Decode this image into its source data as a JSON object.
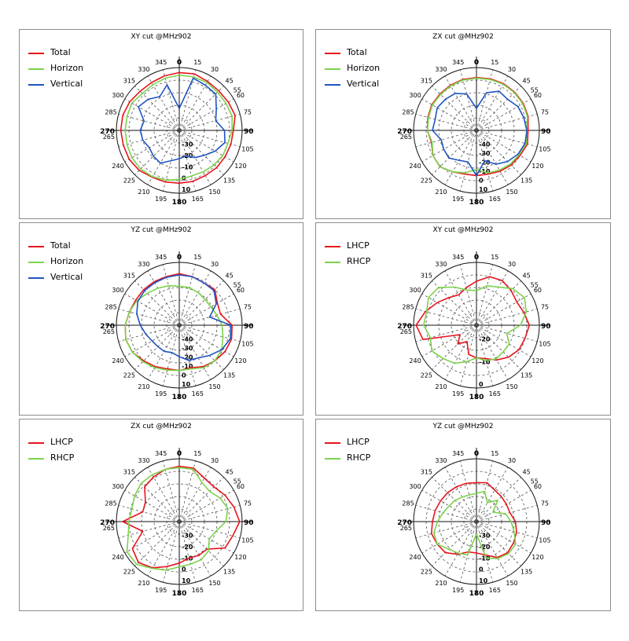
{
  "chart_data": [
    {
      "type": "polar-line",
      "title": "XY cut @MHz902",
      "angle_ticks": [
        "0",
        "15",
        "30",
        "45",
        "55",
        "60",
        "75",
        "90",
        "105",
        "120",
        "135",
        "150",
        "165",
        "180",
        "195",
        "210",
        "225",
        "240",
        "265",
        "270",
        "285",
        "300",
        "315",
        "330",
        "345"
      ],
      "radial_ticks": [
        "-30",
        "-20",
        "-10",
        "0",
        "10"
      ],
      "series": [
        {
          "name": "Total",
          "color": "#e8141e",
          "angles": [
            0,
            15,
            30,
            45,
            60,
            75,
            90,
            105,
            120,
            135,
            150,
            165,
            180,
            195,
            210,
            225,
            240,
            255,
            270,
            285,
            300,
            315,
            330,
            345
          ],
          "values": [
            0.92,
            0.93,
            0.9,
            0.89,
            0.9,
            0.92,
            0.86,
            0.85,
            0.84,
            0.84,
            0.83,
            0.84,
            0.84,
            0.85,
            0.86,
            0.9,
            0.92,
            0.92,
            0.93,
            0.93,
            0.91,
            0.88,
            0.88,
            0.9
          ]
        },
        {
          "name": "Horizon",
          "color": "#7bd34a",
          "angles": [
            0,
            15,
            30,
            45,
            60,
            75,
            90,
            105,
            120,
            135,
            150,
            165,
            180,
            195,
            210,
            225,
            240,
            255,
            270,
            285,
            300,
            315,
            330,
            345
          ],
          "values": [
            0.88,
            0.88,
            0.88,
            0.86,
            0.86,
            0.87,
            0.84,
            0.8,
            0.8,
            0.78,
            0.76,
            0.75,
            0.78,
            0.82,
            0.85,
            0.87,
            0.87,
            0.86,
            0.86,
            0.86,
            0.87,
            0.83,
            0.84,
            0.86
          ]
        },
        {
          "name": "Vertical",
          "color": "#1f54c2",
          "angles": [
            0,
            15,
            30,
            45,
            60,
            75,
            90,
            105,
            120,
            135,
            150,
            165,
            180,
            195,
            210,
            225,
            240,
            255,
            270,
            285,
            300,
            315,
            330,
            345
          ],
          "values": [
            0.35,
            0.86,
            0.83,
            0.82,
            0.68,
            0.6,
            0.72,
            0.75,
            0.66,
            0.56,
            0.5,
            0.42,
            0.45,
            0.5,
            0.6,
            0.58,
            0.55,
            0.6,
            0.62,
            0.58,
            0.75,
            0.7,
            0.62,
            0.75
          ]
        }
      ]
    },
    {
      "type": "polar-line",
      "title": "ZX cut @MHz902",
      "angle_ticks": [
        "0",
        "15",
        "30",
        "45",
        "55",
        "60",
        "75",
        "90",
        "105",
        "120",
        "135",
        "150",
        "165",
        "180",
        "195",
        "210",
        "225",
        "240",
        "265",
        "270",
        "285",
        "300",
        "315",
        "330",
        "345"
      ],
      "radial_ticks": [
        "-40",
        "-30",
        "-20",
        "-10",
        "0",
        "10"
      ],
      "series": [
        {
          "name": "Total",
          "color": "#e8141e",
          "angles": [
            0,
            15,
            30,
            45,
            60,
            75,
            90,
            105,
            120,
            135,
            150,
            165,
            180,
            195,
            210,
            225,
            240,
            255,
            270,
            285,
            300,
            315,
            330,
            345
          ],
          "values": [
            0.84,
            0.85,
            0.86,
            0.86,
            0.86,
            0.85,
            0.82,
            0.84,
            0.8,
            0.78,
            0.75,
            0.72,
            0.72,
            0.72,
            0.76,
            0.82,
            0.8,
            0.74,
            0.78,
            0.8,
            0.82,
            0.82,
            0.83,
            0.84
          ]
        },
        {
          "name": "Horizon",
          "color": "#7bd34a",
          "angles": [
            0,
            15,
            30,
            45,
            60,
            75,
            90,
            105,
            120,
            135,
            150,
            165,
            180,
            195,
            210,
            225,
            240,
            255,
            270,
            285,
            300,
            315,
            330,
            345
          ],
          "values": [
            0.83,
            0.84,
            0.85,
            0.85,
            0.85,
            0.84,
            0.8,
            0.82,
            0.78,
            0.76,
            0.73,
            0.7,
            0.62,
            0.7,
            0.76,
            0.82,
            0.8,
            0.73,
            0.78,
            0.79,
            0.81,
            0.81,
            0.82,
            0.83
          ]
        },
        {
          "name": "Vertical",
          "color": "#1f54c2",
          "angles": [
            0,
            15,
            30,
            45,
            60,
            75,
            90,
            105,
            120,
            135,
            150,
            165,
            180,
            195,
            210,
            225,
            240,
            255,
            270,
            285,
            300,
            315,
            330,
            345
          ],
          "values": [
            0.35,
            0.62,
            0.72,
            0.7,
            0.76,
            0.78,
            0.8,
            0.8,
            0.76,
            0.7,
            0.62,
            0.5,
            0.72,
            0.52,
            0.55,
            0.62,
            0.6,
            0.58,
            0.7,
            0.68,
            0.72,
            0.7,
            0.68,
            0.6
          ]
        }
      ]
    },
    {
      "type": "polar-line",
      "title": "YZ cut @MHz902",
      "angle_ticks": [
        "0",
        "15",
        "30",
        "45",
        "55",
        "60",
        "75",
        "90",
        "105",
        "120",
        "135",
        "150",
        "165",
        "180",
        "195",
        "210",
        "225",
        "240",
        "265",
        "270",
        "285",
        "300",
        "315",
        "330",
        "345"
      ],
      "radial_ticks": [
        "-40",
        "-30",
        "-20",
        "-10",
        "0",
        "10"
      ],
      "series": [
        {
          "name": "Total",
          "color": "#e8141e",
          "angles": [
            0,
            15,
            30,
            45,
            60,
            75,
            90,
            105,
            120,
            135,
            150,
            165,
            180,
            195,
            210,
            225,
            240,
            255,
            270,
            285,
            300,
            315,
            330,
            345
          ],
          "values": [
            0.82,
            0.8,
            0.78,
            0.8,
            0.7,
            0.68,
            0.84,
            0.86,
            0.84,
            0.8,
            0.76,
            0.7,
            0.72,
            0.72,
            0.76,
            0.8,
            0.86,
            0.88,
            0.86,
            0.82,
            0.8,
            0.8,
            0.8,
            0.8
          ]
        },
        {
          "name": "Horizon",
          "color": "#7bd34a",
          "angles": [
            0,
            15,
            30,
            45,
            60,
            75,
            90,
            105,
            120,
            135,
            150,
            165,
            180,
            195,
            210,
            225,
            240,
            255,
            270,
            285,
            300,
            315,
            330,
            345
          ],
          "values": [
            0.62,
            0.62,
            0.6,
            0.58,
            0.58,
            0.62,
            0.68,
            0.72,
            0.78,
            0.8,
            0.78,
            0.72,
            0.72,
            0.74,
            0.78,
            0.82,
            0.86,
            0.88,
            0.86,
            0.82,
            0.78,
            0.72,
            0.68,
            0.65
          ]
        },
        {
          "name": "Vertical",
          "color": "#1f54c2",
          "angles": [
            0,
            15,
            30,
            45,
            60,
            75,
            90,
            105,
            120,
            135,
            150,
            165,
            180,
            195,
            210,
            225,
            240,
            255,
            270,
            285,
            300,
            315,
            330,
            345
          ],
          "values": [
            0.8,
            0.8,
            0.78,
            0.78,
            0.68,
            0.5,
            0.82,
            0.84,
            0.78,
            0.68,
            0.6,
            0.58,
            0.5,
            0.45,
            0.48,
            0.48,
            0.5,
            0.55,
            0.62,
            0.7,
            0.76,
            0.78,
            0.78,
            0.79
          ]
        }
      ]
    },
    {
      "type": "polar-line",
      "title": "XY cut @MHz902",
      "angle_ticks": [
        "0",
        "15",
        "30",
        "45",
        "55",
        "60",
        "75",
        "90",
        "105",
        "120",
        "135",
        "150",
        "165",
        "180",
        "195",
        "210",
        "225",
        "240",
        "265",
        "270",
        "285",
        "300",
        "315",
        "330",
        "345"
      ],
      "radial_ticks": [
        "-20",
        "-10",
        "0"
      ],
      "series": [
        {
          "name": "LHCP",
          "color": "#e8141e",
          "angles": [
            0,
            15,
            30,
            45,
            60,
            75,
            90,
            105,
            120,
            135,
            150,
            165,
            180,
            195,
            210,
            225,
            240,
            255,
            270,
            285,
            300,
            315,
            330,
            345
          ],
          "values": [
            0.7,
            0.8,
            0.82,
            0.78,
            0.74,
            0.78,
            0.84,
            0.8,
            0.78,
            0.72,
            0.64,
            0.55,
            0.52,
            0.48,
            0.3,
            0.42,
            0.3,
            0.88,
            0.96,
            0.84,
            0.72,
            0.62,
            0.56,
            0.62
          ]
        },
        {
          "name": "RHCP",
          "color": "#7bd34a",
          "angles": [
            0,
            15,
            30,
            45,
            60,
            75,
            90,
            105,
            120,
            135,
            150,
            165,
            180,
            195,
            210,
            225,
            240,
            255,
            270,
            285,
            300,
            315,
            330,
            345
          ],
          "values": [
            0.55,
            0.65,
            0.7,
            0.82,
            0.88,
            0.82,
            0.7,
            0.5,
            0.6,
            0.6,
            0.62,
            0.58,
            0.52,
            0.6,
            0.7,
            0.75,
            0.82,
            0.76,
            0.84,
            0.82,
            0.88,
            0.85,
            0.7,
            0.58
          ]
        }
      ]
    },
    {
      "type": "polar-line",
      "title": "ZX cut @MHz902",
      "angle_ticks": [
        "0",
        "15",
        "30",
        "45",
        "55",
        "60",
        "75",
        "90",
        "105",
        "120",
        "135",
        "150",
        "165",
        "180",
        "195",
        "210",
        "225",
        "240",
        "265",
        "270",
        "285",
        "300",
        "315",
        "330",
        "345"
      ],
      "radial_ticks": [
        "-30",
        "-20",
        "-10",
        "0",
        "10"
      ],
      "series": [
        {
          "name": "LHCP",
          "color": "#e8141e",
          "angles": [
            0,
            15,
            30,
            45,
            60,
            75,
            90,
            105,
            120,
            135,
            150,
            165,
            180,
            195,
            210,
            225,
            240,
            255,
            270,
            285,
            300,
            315,
            330,
            345
          ],
          "values": [
            0.88,
            0.88,
            0.8,
            0.78,
            0.84,
            0.9,
            0.96,
            0.88,
            0.84,
            0.62,
            0.62,
            0.6,
            0.66,
            0.74,
            0.85,
            0.92,
            0.86,
            0.6,
            0.9,
            0.6,
            0.62,
            0.78,
            0.82,
            0.86
          ]
        },
        {
          "name": "RHCP",
          "color": "#7bd34a",
          "angles": [
            0,
            15,
            30,
            45,
            60,
            75,
            90,
            105,
            120,
            135,
            150,
            165,
            180,
            195,
            210,
            225,
            240,
            255,
            270,
            285,
            300,
            315,
            330,
            345
          ],
          "values": [
            0.86,
            0.86,
            0.72,
            0.68,
            0.75,
            0.8,
            0.74,
            0.6,
            0.55,
            0.66,
            0.7,
            0.7,
            0.72,
            0.8,
            0.86,
            0.96,
            0.96,
            0.84,
            0.8,
            0.78,
            0.82,
            0.86,
            0.86,
            0.86
          ]
        }
      ]
    },
    {
      "type": "polar-line",
      "title": "YZ cut @MHz902",
      "angle_ticks": [
        "0",
        "15",
        "30",
        "45",
        "55",
        "60",
        "75",
        "90",
        "105",
        "120",
        "135",
        "150",
        "165",
        "180",
        "195",
        "210",
        "225",
        "240",
        "265",
        "270",
        "285",
        "300",
        "315",
        "330",
        "345"
      ],
      "radial_ticks": [
        "-30",
        "-20",
        "-10",
        "0",
        "10"
      ],
      "series": [
        {
          "name": "LHCP",
          "color": "#e8141e",
          "angles": [
            0,
            15,
            30,
            45,
            60,
            75,
            90,
            105,
            120,
            135,
            150,
            165,
            180,
            195,
            210,
            225,
            240,
            255,
            270,
            285,
            300,
            315,
            330,
            345
          ],
          "values": [
            0.62,
            0.64,
            0.58,
            0.56,
            0.55,
            0.55,
            0.62,
            0.66,
            0.68,
            0.7,
            0.66,
            0.55,
            0.5,
            0.5,
            0.6,
            0.7,
            0.72,
            0.74,
            0.7,
            0.68,
            0.66,
            0.65,
            0.64,
            0.63
          ]
        },
        {
          "name": "RHCP",
          "color": "#7bd34a",
          "angles": [
            0,
            15,
            30,
            45,
            60,
            75,
            90,
            105,
            120,
            135,
            150,
            165,
            180,
            195,
            210,
            225,
            240,
            255,
            270,
            285,
            300,
            315,
            330,
            345
          ],
          "values": [
            0.45,
            0.5,
            0.35,
            0.48,
            0.3,
            0.48,
            0.55,
            0.62,
            0.72,
            0.72,
            0.68,
            0.6,
            0.2,
            0.55,
            0.58,
            0.62,
            0.72,
            0.7,
            0.62,
            0.55,
            0.5,
            0.48,
            0.45,
            0.44
          ]
        }
      ]
    }
  ]
}
